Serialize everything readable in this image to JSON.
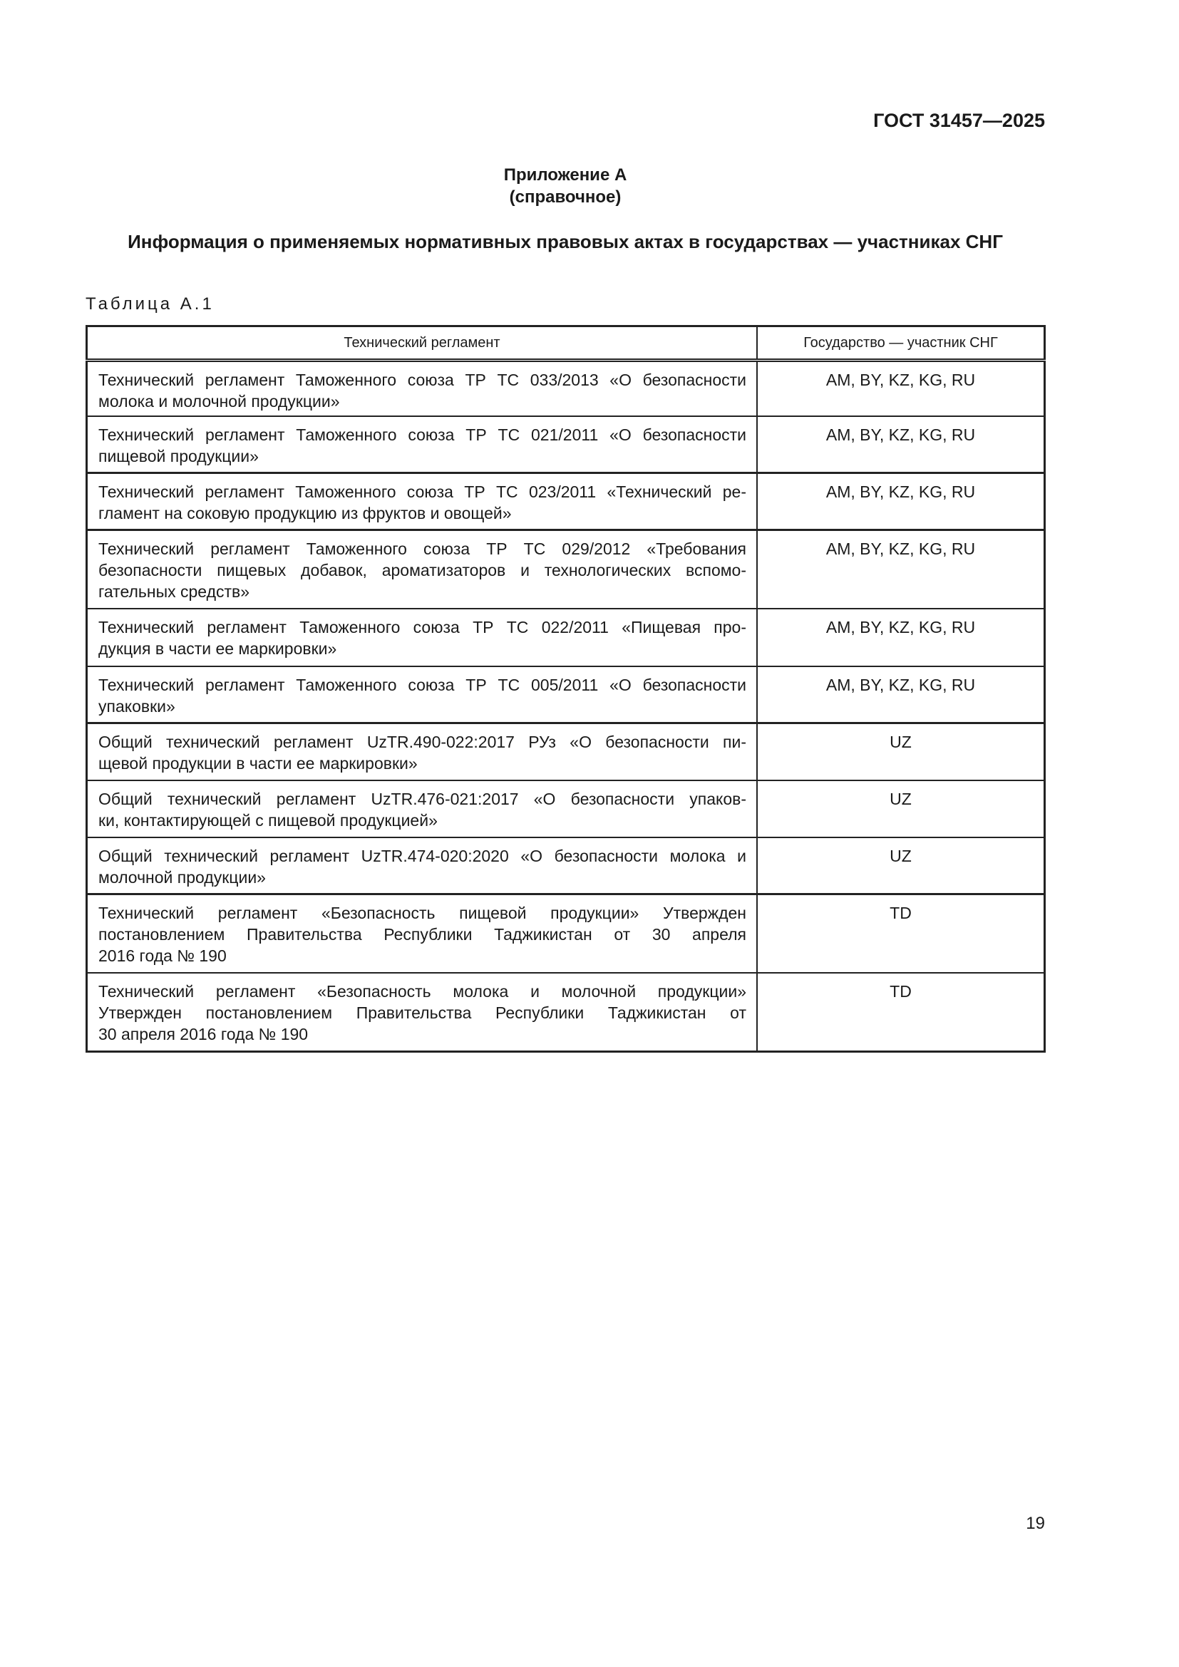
{
  "header": {
    "doc_code": "ГОСТ 31457—2025"
  },
  "appendix": {
    "title": "Приложение А",
    "subtitle": "(справочное)"
  },
  "heading": "Информация о применяемых нормативных правовых актах в государствах — участниках СНГ",
  "table": {
    "label": "Таблица А.1",
    "columns": [
      "Технический регламент",
      "Государство — участник СНГ"
    ],
    "rows": [
      {
        "lines": [
          "Технический регламент Таможенного союза ТР ТС 033/2013 «О безопасности",
          "молока и молочной продукции»"
        ],
        "states": "AM, BY, KZ, KG, RU",
        "h": 78
      },
      {
        "lines": [
          "Технический регламент Таможенного союза ТР ТС 021/2011 «О безопасности",
          "пищевой продукции»"
        ],
        "states": "AM, BY, KZ, KG, RU",
        "h": 80
      },
      {
        "lines": [
          "Технический регламент Таможенного союза ТР ТС 023/2011 «Технический ре-",
          "гламент на соковую продукцию из фруктов и овощей»"
        ],
        "states": "AM, BY, KZ, KG, RU",
        "h": 80
      },
      {
        "lines": [
          "Технический регламент Таможенного союза ТР ТС 029/2012 «Требования",
          "безопасности пищевых добавок, ароматизаторов и технологических вспомо-",
          "гательных средств»"
        ],
        "states": "AM, BY, KZ, KG, RU",
        "h": 110
      },
      {
        "lines": [
          "Технический регламент Таможенного союза ТР ТС 022/2011 «Пищевая про-",
          "дукция в части ее маркировки»"
        ],
        "states": "AM, BY, KZ, KG, RU",
        "h": 81
      },
      {
        "lines": [
          "Технический регламент Таможенного союза ТР ТС 005/2011 «О безопасности",
          "упаковки»"
        ],
        "states": "AM, BY, KZ, KG, RU",
        "h": 80
      },
      {
        "lines": [
          "Общий технический регламент UzTR.490-022:2017 РУз «О безопасности пи-",
          "щевой продукции в части ее маркировки»"
        ],
        "states": "UZ",
        "h": 80
      },
      {
        "lines": [
          "Общий технический регламент UzTR.476-021:2017 «О безопасности упаков-",
          "ки, контактирующей с пищевой продукцией»"
        ],
        "states": "UZ",
        "h": 80
      },
      {
        "lines": [
          "Общий технический регламент UzTR.474-020:2020 «О безопасности молока и",
          "молочной продукции»"
        ],
        "states": "UZ",
        "h": 80
      },
      {
        "lines": [
          "Технический регламент «Безопасность пищевой продукции» Утвержден",
          "постановлением Правительства Республики Таджикистан от 30 апреля",
          "2016 года № 190"
        ],
        "states": "TD",
        "h": 110
      },
      {
        "lines": [
          "Технический регламент «Безопасность молока и молочной продукции»",
          "Утвержден постановлением Правительства Республики Таджикистан от",
          "30 апреля 2016 года № 190"
        ],
        "states": "TD",
        "h": 111
      }
    ]
  },
  "page_number": "19"
}
